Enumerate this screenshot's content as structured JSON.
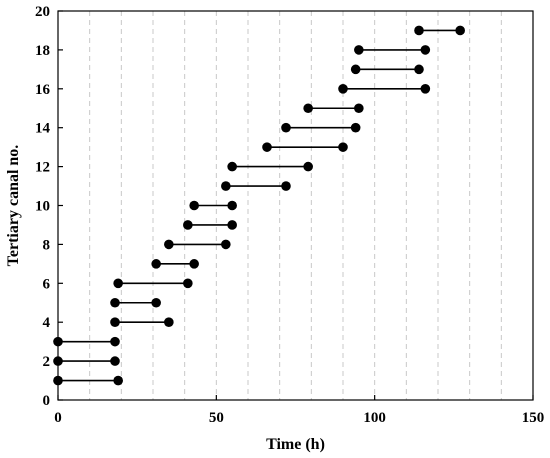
{
  "chart_data": {
    "type": "dumbbell",
    "xlabel": "Time (h)",
    "ylabel": "Tertiary canal no.",
    "xlim": [
      0,
      150
    ],
    "ylim": [
      0,
      20
    ],
    "x_ticks": [
      0,
      50,
      100,
      150
    ],
    "y_ticks": [
      0,
      2,
      4,
      6,
      8,
      10,
      12,
      14,
      16,
      18,
      20
    ],
    "x_minor_gridlines": [
      10,
      20,
      30,
      40,
      50,
      60,
      70,
      80,
      90,
      100,
      110,
      120,
      130,
      140
    ],
    "grid": "vertical dashed",
    "color": "#000000",
    "intervals": [
      {
        "canal": 1,
        "start": 0,
        "end": 19
      },
      {
        "canal": 2,
        "start": 0,
        "end": 18
      },
      {
        "canal": 3,
        "start": 0,
        "end": 18
      },
      {
        "canal": 4,
        "start": 18,
        "end": 35
      },
      {
        "canal": 5,
        "start": 18,
        "end": 31
      },
      {
        "canal": 6,
        "start": 19,
        "end": 41
      },
      {
        "canal": 7,
        "start": 31,
        "end": 43
      },
      {
        "canal": 8,
        "start": 35,
        "end": 53
      },
      {
        "canal": 9,
        "start": 41,
        "end": 55
      },
      {
        "canal": 10,
        "start": 43,
        "end": 55
      },
      {
        "canal": 11,
        "start": 53,
        "end": 72
      },
      {
        "canal": 12,
        "start": 55,
        "end": 79
      },
      {
        "canal": 13,
        "start": 66,
        "end": 90
      },
      {
        "canal": 14,
        "start": 72,
        "end": 94
      },
      {
        "canal": 15,
        "start": 79,
        "end": 95
      },
      {
        "canal": 16,
        "start": 90,
        "end": 116
      },
      {
        "canal": 17,
        "start": 94,
        "end": 114
      },
      {
        "canal": 18,
        "start": 95,
        "end": 116
      },
      {
        "canal": 19,
        "start": 114,
        "end": 127
      }
    ]
  }
}
